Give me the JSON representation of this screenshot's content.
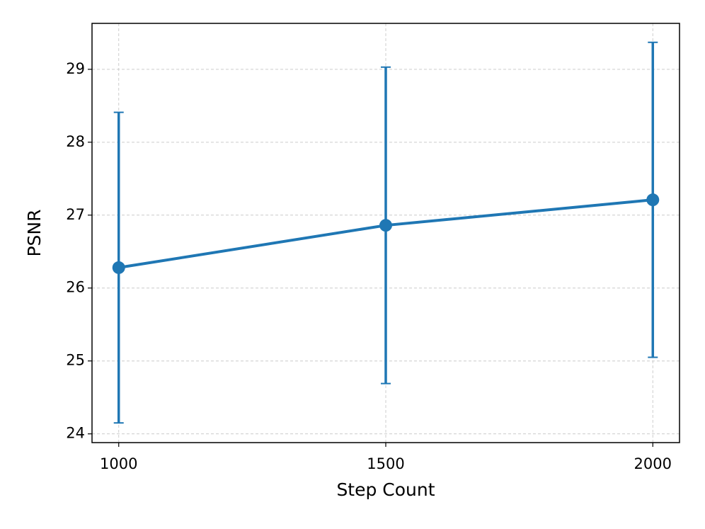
{
  "chart_data": {
    "type": "line",
    "x_label": "Step Count",
    "y_label": "PSNR",
    "x": [
      1000,
      1500,
      2000
    ],
    "series": [
      {
        "color": "#1f77b4",
        "values": [
          26.28,
          26.86,
          27.21
        ],
        "errors": [
          2.13,
          2.17,
          2.16
        ]
      }
    ],
    "xlim": [
      950,
      2050
    ],
    "ylim": [
      23.88,
      29.63
    ],
    "xticks": [
      1000,
      1500,
      2000
    ],
    "yticks": [
      24,
      25,
      26,
      27,
      28,
      29
    ],
    "grid": true
  }
}
